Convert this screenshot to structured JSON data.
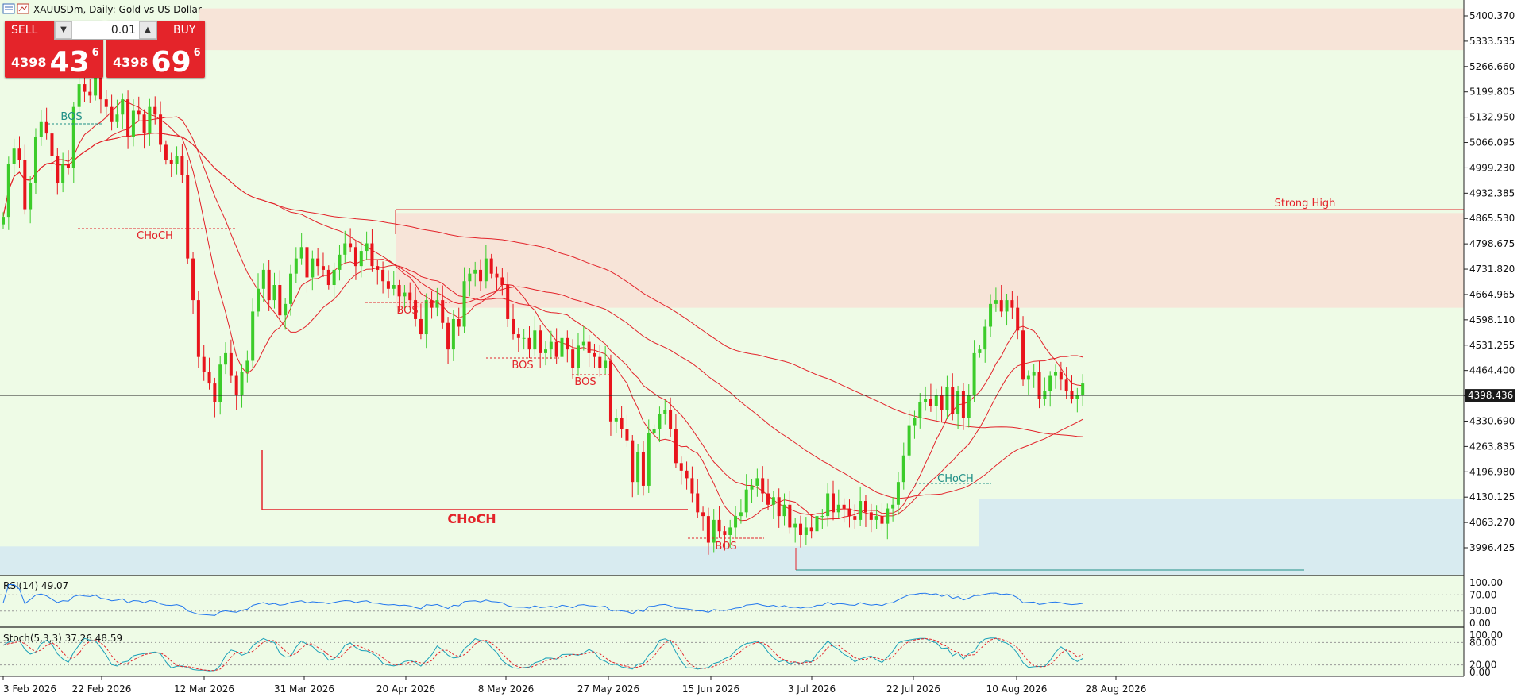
{
  "window": {
    "title": "XAUUSDm, Daily:  Gold vs US Dollar",
    "icons": [
      "chart-window-icon",
      "chart-type-icon"
    ]
  },
  "trade_panel": {
    "sell_label": "SELL",
    "buy_label": "BUY",
    "lot_value": "0.01",
    "sell_price_small": "4398",
    "sell_price_big": "43",
    "sell_price_sup": "6",
    "buy_price_small": "4398",
    "buy_price_big": "69",
    "buy_price_sup": "6"
  },
  "colors": {
    "background": "#eefbe6",
    "bull": "#3ccc2a",
    "bear": "#e8141c",
    "ma": "#e3232a",
    "supply_zone": "#f7e4d8",
    "demand_zone": "#d8ebf0",
    "annotation_red": "#e3232a",
    "annotation_teal": "#1f8f86",
    "rsi_line": "#2277ee",
    "stoch_main": "#1aa0b8",
    "stoch_signal": "#e3232a"
  },
  "chart_data": [
    {
      "type": "candlestick",
      "symbol": "XAUUSDm",
      "timeframe": "Daily",
      "ylim": [
        3930,
        5450
      ],
      "y_ticks": [
        "5400.370",
        "5333.535",
        "5266.660",
        "5199.805",
        "5132.950",
        "5066.095",
        "4999.230",
        "4932.385",
        "4865.530",
        "4798.675",
        "4731.820",
        "4664.965",
        "4598.110",
        "4531.255",
        "4464.400",
        "4398.436",
        "4330.690",
        "4263.835",
        "4196.980",
        "4130.125",
        "4063.270",
        "3996.425"
      ],
      "x_ticks": [
        "3 Feb 2026",
        "22 Feb 2026",
        "12 Mar 2026",
        "31 Mar 2026",
        "20 Apr 2026",
        "8 May 2026",
        "27 May 2026",
        "15 Jun 2026",
        "3 Jul 2026",
        "22 Jul 2026",
        "10 Aug 2026",
        "28 Aug 2026"
      ],
      "current_price": "4398.436",
      "series_close": [
        4870,
        5010,
        5050,
        5020,
        4890,
        4960,
        5080,
        5120,
        5090,
        5030,
        4960,
        5010,
        5000,
        5160,
        5220,
        5200,
        5190,
        5250,
        5180,
        5160,
        5120,
        5140,
        5180,
        5080,
        5150,
        5140,
        5090,
        5160,
        5140,
        5060,
        5020,
        5010,
        5030,
        4980,
        4760,
        4650,
        4500,
        4460,
        4430,
        4380,
        4480,
        4510,
        4450,
        4400,
        4460,
        4490,
        4620,
        4680,
        4730,
        4650,
        4690,
        4610,
        4640,
        4720,
        4760,
        4790,
        4710,
        4760,
        4740,
        4730,
        4690,
        4730,
        4770,
        4800,
        4790,
        4740,
        4780,
        4800,
        4740,
        4730,
        4700,
        4680,
        4690,
        4660,
        4670,
        4650,
        4600,
        4560,
        4650,
        4630,
        4650,
        4590,
        4520,
        4600,
        4580,
        4700,
        4720,
        4730,
        4700,
        4760,
        4720,
        4710,
        4690,
        4600,
        4560,
        4550,
        4550,
        4520,
        4570,
        4510,
        4520,
        4540,
        4500,
        4550,
        4520,
        4470,
        4530,
        4540,
        4510,
        4500,
        4470,
        4490,
        4330,
        4340,
        4310,
        4280,
        4170,
        4250,
        4160,
        4300,
        4310,
        4350,
        4360,
        4310,
        4220,
        4200,
        4180,
        4140,
        4090,
        4080,
        4010,
        4070,
        4040,
        4030,
        4050,
        4080,
        4090,
        4150,
        4160,
        4180,
        4140,
        4110,
        4130,
        4080,
        4110,
        4050,
        4060,
        4030,
        4050,
        4040,
        4080,
        4080,
        4140,
        4090,
        4110,
        4100,
        4080,
        4070,
        4120,
        4090,
        4070,
        4080,
        4060,
        4100,
        4110,
        4170,
        4240,
        4320,
        4340,
        4380,
        4390,
        4370,
        4400,
        4360,
        4420,
        4350,
        4410,
        4340,
        4400,
        4510,
        4520,
        4580,
        4640,
        4650,
        4620,
        4650,
        4630,
        4570,
        4440,
        4450,
        4460,
        4390,
        4410,
        4450,
        4460,
        4440,
        4410,
        4390,
        4400,
        4430
      ],
      "moving_averages": [
        "MA 10",
        "MA 20",
        "MA 50",
        "MA 100"
      ],
      "annotations": {
        "structure_labels": [
          "BOS",
          "CHoCH",
          "BOS",
          "BOS",
          "BOS",
          "CHoCH",
          "BOS",
          "CHoCH"
        ],
        "strong_high_label": "Strong High",
        "big_choch_label": "CHoCH"
      }
    },
    {
      "type": "line",
      "name": "RSI(14)",
      "label": "RSI(14) 49.07",
      "value": 49.07,
      "ylim": [
        0,
        100
      ],
      "levels": [
        70,
        30
      ],
      "y_ticks": [
        "100.00",
        "70.00",
        "30.00",
        "0.00"
      ]
    },
    {
      "type": "line",
      "name": "Stoch(5,3,3)",
      "label": "Stoch(5,3,3) 37.26 48.59",
      "main_value": 37.26,
      "signal_value": 48.59,
      "ylim": [
        0,
        100
      ],
      "levels": [
        80,
        20
      ],
      "y_ticks": [
        "100.00",
        "80.00",
        "20.00",
        "0.00"
      ]
    }
  ]
}
